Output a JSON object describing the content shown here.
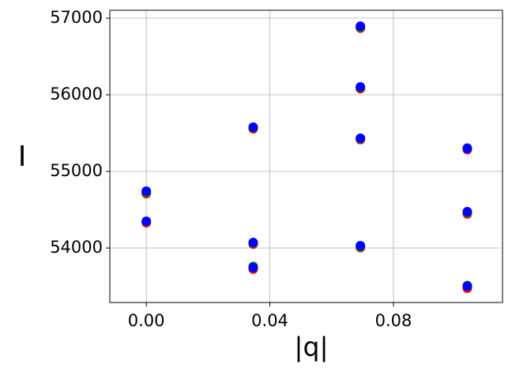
{
  "chart_data": {
    "type": "scatter",
    "x_label": "|q|",
    "y_label": "I",
    "xlim": [
      -0.0118,
      0.1153
    ],
    "ylim": [
      53289,
      57103
    ],
    "xticks": [
      {
        "value": 0,
        "label": "0.00"
      },
      {
        "value": 0.04,
        "label": "0.04"
      },
      {
        "value": 0.08,
        "label": "0.08"
      }
    ],
    "yticks": [
      54000,
      55000,
      56000,
      57000
    ],
    "grid": true,
    "x": [
      0,
      0,
      0.0346,
      0.0346,
      0.0346,
      0.0693,
      0.0693,
      0.0693,
      0.0693,
      0.1039,
      0.1039,
      0.1039
    ],
    "series": [
      {
        "color": "#ff0000",
        "values": [
          54710,
          54330,
          55555,
          54050,
          53725,
          56870,
          56080,
          55415,
          54005,
          55285,
          54445,
          53475
        ]
      },
      {
        "color": "#008000",
        "values": [
          54725,
          54345,
          55570,
          54065,
          53760,
          56880,
          56095,
          55425,
          54015,
          55305,
          54460,
          53510
        ]
      },
      {
        "color": "#0000ff",
        "values": [
          54742,
          54350,
          55577,
          54072,
          53745,
          56895,
          56103,
          55433,
          54031,
          55299,
          54474,
          53500
        ]
      }
    ]
  }
}
